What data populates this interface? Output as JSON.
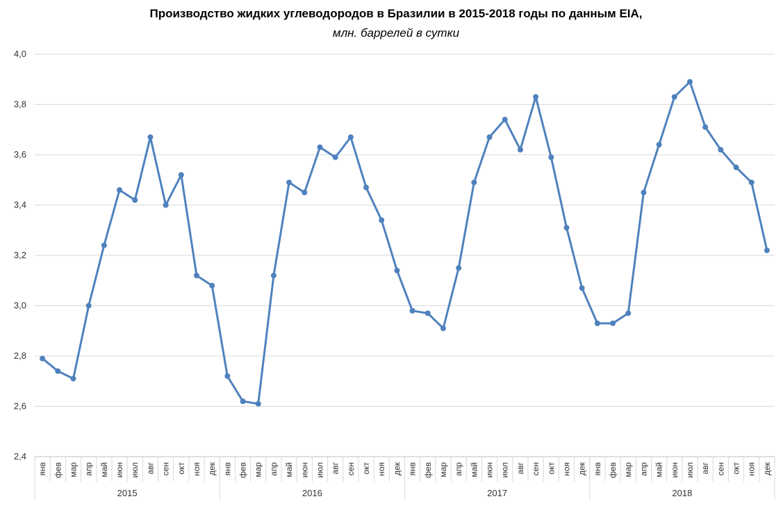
{
  "chart_data": {
    "type": "line",
    "title": "Производство жидких углеводородов в Бразилии в 2015-2018 годы по данным EIA,",
    "subtitle": "млн. баррелей в сутки",
    "ylim": [
      2.4,
      4.0
    ],
    "yticks": [
      "2,4",
      "2,6",
      "2,8",
      "3,0",
      "3,2",
      "3,4",
      "3,6",
      "3,8",
      "4,0"
    ],
    "grid": true,
    "legend": "none",
    "color": "#4F81BD",
    "months": [
      "янв",
      "фев",
      "мар",
      "апр",
      "май",
      "июн",
      "июл",
      "авг",
      "сен",
      "окт",
      "ноя",
      "дек"
    ],
    "years": [
      "2015",
      "2016",
      "2017",
      "2018"
    ],
    "values": [
      2.79,
      2.74,
      2.71,
      3.0,
      3.24,
      3.46,
      3.42,
      3.67,
      3.4,
      3.52,
      3.12,
      3.08,
      2.72,
      2.62,
      2.61,
      3.12,
      3.49,
      3.45,
      3.63,
      3.59,
      3.67,
      3.47,
      3.34,
      3.14,
      2.98,
      2.97,
      2.91,
      3.15,
      3.49,
      3.67,
      3.74,
      3.62,
      3.83,
      3.59,
      3.31,
      3.07,
      2.93,
      2.93,
      2.97,
      3.45,
      3.64,
      3.83,
      3.89,
      3.71,
      3.62,
      3.55,
      3.49,
      3.22
    ]
  }
}
